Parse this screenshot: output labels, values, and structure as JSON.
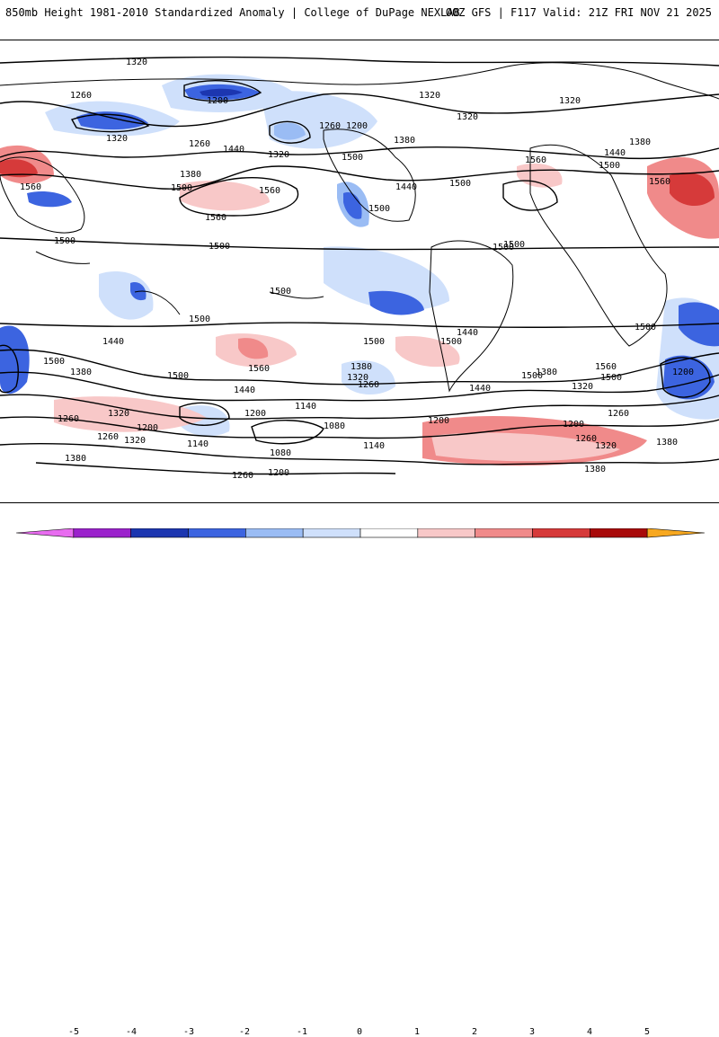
{
  "header": {
    "left_title": "850mb Height 1981-2010 Standardized Anomaly | College of DuPage NEXLAB",
    "right_title": "00Z GFS | F117 Valid: 21Z FRI NOV 21 2025"
  },
  "map": {
    "contour_labels": [
      "1320",
      "1260",
      "1200",
      "1320",
      "1260",
      "1320",
      "1440",
      "1380",
      "1500",
      "1560",
      "1500",
      "1500",
      "1560",
      "1500",
      "1320",
      "1260",
      "1200",
      "1560",
      "1500",
      "1440",
      "1320",
      "1380",
      "1500",
      "1560",
      "1320",
      "1380",
      "1440",
      "1500",
      "1560",
      "1500",
      "1500",
      "1500",
      "1500",
      "1500",
      "1440",
      "1500",
      "1380",
      "1500",
      "1440",
      "1560",
      "1500",
      "1440",
      "1320",
      "1200",
      "1260",
      "1320",
      "1200",
      "1260",
      "1380",
      "1140",
      "1380",
      "1320",
      "1260",
      "1140",
      "1080",
      "1200",
      "1140",
      "1080",
      "1260",
      "1200",
      "1500",
      "1380",
      "1560",
      "1500",
      "1320",
      "1200",
      "1440",
      "1200",
      "1260",
      "1380",
      "1320",
      "1260",
      "1380",
      "1500"
    ]
  },
  "colorbar": {
    "ticks": [
      "-5",
      "-4",
      "-3",
      "-2",
      "-1",
      "0",
      "1",
      "2",
      "3",
      "4",
      "5"
    ],
    "colors": [
      "#e86cf0",
      "#9b22cc",
      "#1c36b0",
      "#3c64e0",
      "#9abcf4",
      "#cfe0fb",
      "#ffffff",
      "#f8c8c8",
      "#f08a8a",
      "#d63a3a",
      "#a80a0a",
      "#f7a820"
    ]
  }
}
